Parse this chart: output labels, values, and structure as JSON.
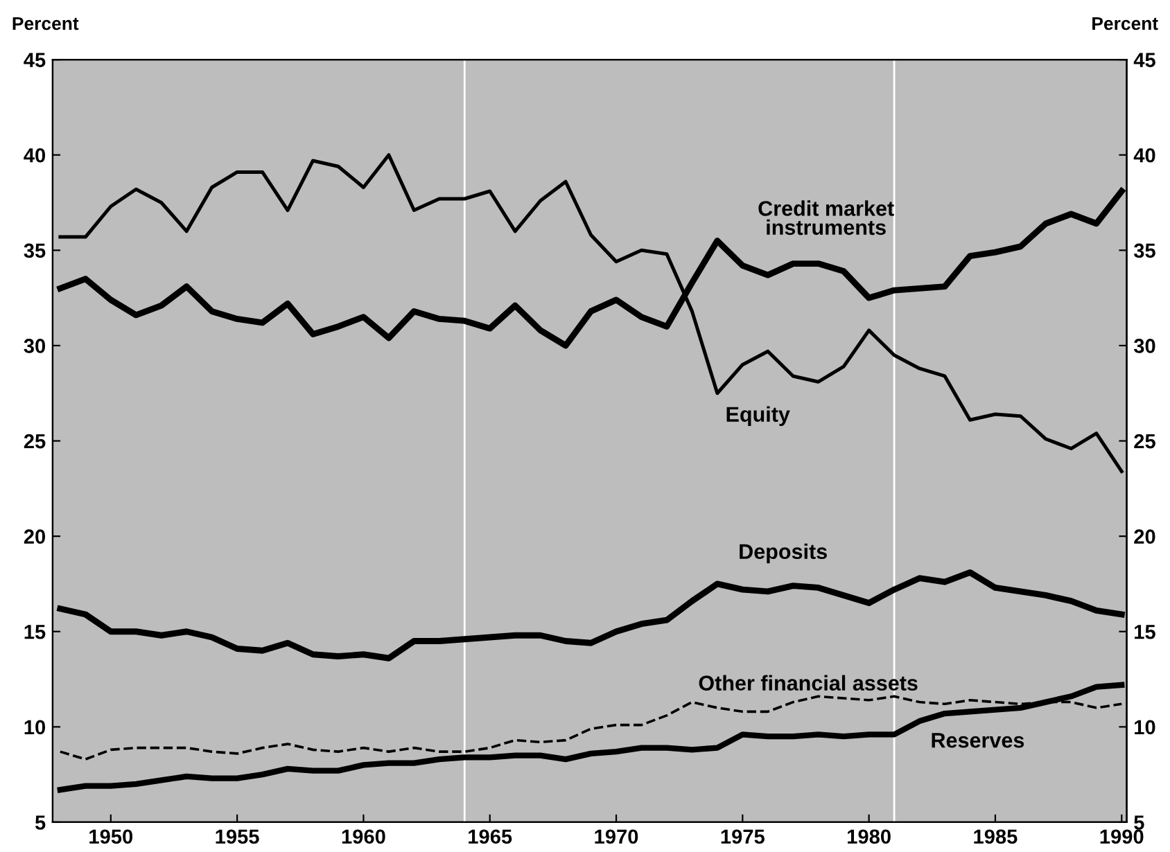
{
  "chart_data": {
    "type": "line",
    "ylabel": "Percent",
    "y2label": "Percent",
    "x": [
      1948,
      1949,
      1950,
      1951,
      1952,
      1953,
      1954,
      1955,
      1956,
      1957,
      1958,
      1959,
      1960,
      1961,
      1962,
      1963,
      1964,
      1965,
      1966,
      1967,
      1968,
      1969,
      1970,
      1971,
      1972,
      1973,
      1974,
      1975,
      1976,
      1977,
      1978,
      1979,
      1980,
      1981,
      1982,
      1983,
      1984,
      1985,
      1986,
      1987,
      1988,
      1989,
      1990
    ],
    "series": [
      {
        "name": "Credit market\ninstruments",
        "color": "#000000",
        "line_style": "solid",
        "values": [
          33.0,
          33.5,
          32.4,
          31.6,
          32.1,
          33.1,
          31.8,
          31.4,
          31.2,
          32.2,
          30.6,
          31.0,
          31.5,
          30.4,
          31.8,
          31.4,
          31.3,
          30.9,
          32.1,
          30.8,
          30.0,
          31.8,
          32.4,
          31.5,
          31.0,
          33.3,
          35.5,
          34.2,
          33.7,
          34.3,
          34.3,
          33.9,
          32.5,
          32.9,
          33.0,
          33.1,
          34.7,
          34.9,
          35.2,
          36.4,
          36.9,
          36.4,
          38.1
        ]
      },
      {
        "name": "Equity",
        "color": "#000000",
        "line_style": "solid",
        "values": [
          35.7,
          35.7,
          37.3,
          38.2,
          37.5,
          36.0,
          38.3,
          39.1,
          39.1,
          37.1,
          39.7,
          39.4,
          38.3,
          40.0,
          37.1,
          37.7,
          37.7,
          38.1,
          36.0,
          37.6,
          38.6,
          35.8,
          34.4,
          35.0,
          34.8,
          31.8,
          27.5,
          29.0,
          29.7,
          28.4,
          28.1,
          28.9,
          30.8,
          29.5,
          28.8,
          28.4,
          26.1,
          26.4,
          26.3,
          25.1,
          24.6,
          25.4,
          23.4
        ]
      },
      {
        "name": "Deposits",
        "color": "#000000",
        "line_style": "solid",
        "values": [
          16.2,
          15.9,
          15.0,
          15.0,
          14.8,
          15.0,
          14.7,
          14.1,
          14.0,
          14.4,
          13.8,
          13.7,
          13.8,
          13.6,
          14.5,
          14.5,
          14.6,
          14.7,
          14.8,
          14.8,
          14.5,
          14.4,
          15.0,
          15.4,
          15.6,
          16.6,
          17.5,
          17.2,
          17.1,
          17.4,
          17.3,
          16.9,
          16.5,
          17.2,
          17.8,
          17.6,
          18.1,
          17.3,
          17.1,
          16.9,
          16.6,
          16.1,
          15.9
        ]
      },
      {
        "name": "Other financial assets",
        "color": "#000000",
        "line_style": "dashed",
        "values": [
          8.7,
          8.3,
          8.8,
          8.9,
          8.9,
          8.9,
          8.7,
          8.6,
          8.9,
          9.1,
          8.8,
          8.7,
          8.9,
          8.7,
          8.9,
          8.7,
          8.7,
          8.9,
          9.3,
          9.2,
          9.3,
          9.9,
          10.1,
          10.1,
          10.6,
          11.3,
          11.0,
          10.8,
          10.8,
          11.3,
          11.6,
          11.5,
          11.4,
          11.6,
          11.3,
          11.2,
          11.4,
          11.3,
          11.2,
          11.3,
          11.3,
          11.0,
          11.2
        ]
      },
      {
        "name": "Reserves",
        "color": "#000000",
        "line_style": "solid",
        "values": [
          6.7,
          6.9,
          6.9,
          7.0,
          7.2,
          7.4,
          7.3,
          7.3,
          7.5,
          7.8,
          7.7,
          7.7,
          8.0,
          8.1,
          8.1,
          8.3,
          8.4,
          8.4,
          8.5,
          8.5,
          8.3,
          8.6,
          8.7,
          8.9,
          8.9,
          8.8,
          8.9,
          9.6,
          9.5,
          9.5,
          9.6,
          9.5,
          9.6,
          9.6,
          10.3,
          10.7,
          10.8,
          10.9,
          11.0,
          11.3,
          11.6,
          12.1,
          12.2
        ]
      }
    ],
    "xlim": [
      1947.7,
      1990.2
    ],
    "xticks": [
      1950,
      1955,
      1960,
      1965,
      1970,
      1975,
      1980,
      1985,
      1990
    ],
    "ylim": [
      5,
      45
    ],
    "yticks": [
      5,
      10,
      15,
      20,
      25,
      30,
      35,
      40,
      45
    ],
    "y2lim": [
      5,
      45
    ],
    "y2ticks": [
      5,
      10,
      15,
      20,
      25,
      30,
      35,
      40,
      45
    ],
    "ref_lines": [
      {
        "axis": "x",
        "value": 1964,
        "color": "#ffffff"
      },
      {
        "axis": "x",
        "value": 1981,
        "color": "#ffffff"
      }
    ],
    "grid": false,
    "legend": false,
    "marker": "none"
  }
}
